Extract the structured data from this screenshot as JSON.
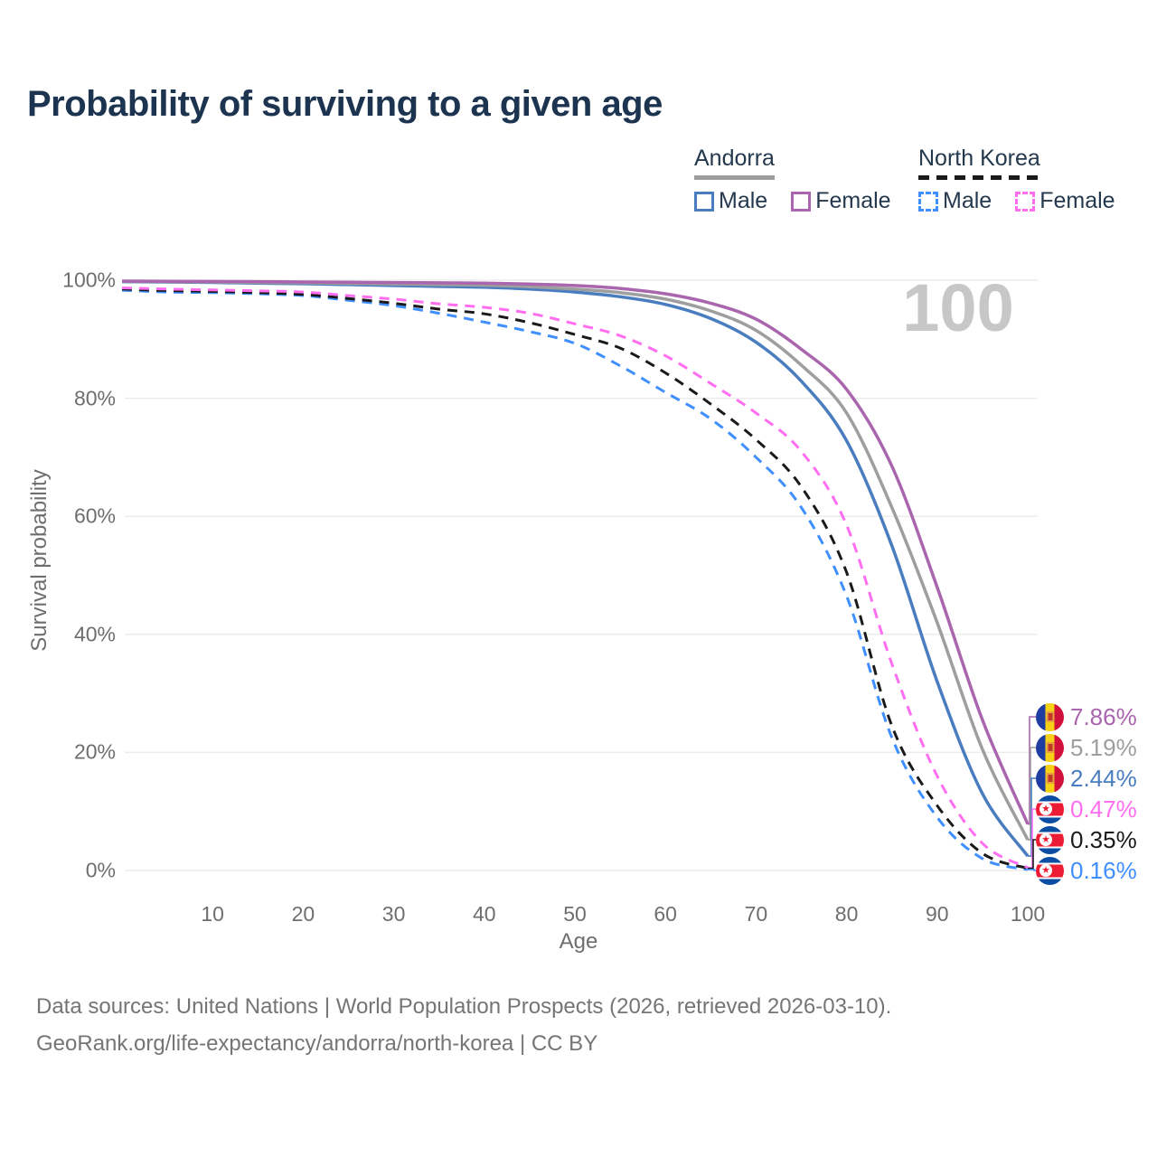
{
  "page": {
    "footer": {
      "line1": "Data sources: United Nations | World Population Prospects (2026, retrieved 2026-03-10).",
      "line2": "GeoRank.org/life-expectancy/andorra/north-korea | CC BY"
    }
  },
  "chart_data": {
    "type": "line",
    "title": "Probability of surviving to a given age",
    "xlabel": "Age",
    "ylabel": "Survival probability",
    "xlim": [
      0,
      100
    ],
    "ylim": [
      0,
      100
    ],
    "grid": "horizontal",
    "legend_position": "top-right",
    "watermark": "100",
    "x_ticks": [
      10,
      20,
      30,
      40,
      50,
      60,
      70,
      80,
      90,
      100
    ],
    "y_ticks": [
      {
        "value": 0,
        "label": "0%"
      },
      {
        "value": 20,
        "label": "20%"
      },
      {
        "value": 40,
        "label": "40%"
      },
      {
        "value": 60,
        "label": "60%"
      },
      {
        "value": 80,
        "label": "80%"
      },
      {
        "value": 100,
        "label": "100%"
      }
    ],
    "ages": [
      0,
      5,
      10,
      15,
      20,
      25,
      30,
      35,
      40,
      45,
      50,
      55,
      60,
      65,
      70,
      75,
      80,
      85,
      90,
      95,
      100
    ],
    "series": [
      {
        "id": "andorra-female",
        "name": "Andorra — Female",
        "country": "Andorra",
        "sex": "Female",
        "color": "#a965ad",
        "dashed": false,
        "flag": "ad",
        "end_label": "7.86%",
        "values": [
          99.85,
          99.8,
          99.78,
          99.75,
          99.7,
          99.65,
          99.6,
          99.55,
          99.5,
          99.35,
          99.1,
          98.6,
          97.7,
          96.1,
          93.4,
          88.3,
          81.5,
          68.5,
          48.0,
          25.5,
          7.86
        ]
      },
      {
        "id": "andorra-both",
        "name": "Andorra — Both sexes",
        "country": "Andorra",
        "sex": "Both sexes",
        "color": "#9e9e9e",
        "dashed": false,
        "flag": "ad",
        "end_label": "5.19%",
        "values": [
          99.8,
          99.75,
          99.7,
          99.62,
          99.55,
          99.45,
          99.35,
          99.25,
          99.15,
          98.9,
          98.5,
          97.9,
          96.8,
          94.8,
          91.5,
          85.6,
          77.5,
          61.5,
          42.0,
          20.5,
          5.19
        ]
      },
      {
        "id": "andorra-male",
        "name": "Andorra — Male",
        "country": "Andorra",
        "sex": "Male",
        "color": "#4a7dbf",
        "dashed": false,
        "flag": "ad",
        "end_label": "2.44%",
        "values": [
          99.75,
          99.7,
          99.62,
          99.5,
          99.4,
          99.25,
          99.1,
          98.95,
          98.8,
          98.5,
          98.0,
          97.2,
          95.9,
          93.5,
          89.5,
          82.9,
          72.8,
          55.0,
          32.0,
          13.0,
          2.44
        ]
      },
      {
        "id": "north-korea-female",
        "name": "North Korea — Female",
        "country": "North Korea",
        "sex": "Female",
        "color": "#ff6ef0",
        "dashed": true,
        "flag": "kp",
        "end_label": "0.47%",
        "values": [
          98.7,
          98.5,
          98.35,
          98.2,
          98.0,
          97.4,
          96.8,
          96.0,
          95.4,
          94.4,
          92.6,
          90.6,
          87.2,
          82.5,
          77.5,
          71.0,
          58.5,
          35.0,
          16.0,
          4.6,
          0.47
        ]
      },
      {
        "id": "north-korea-both",
        "name": "North Korea — Both sexes",
        "country": "North Korea",
        "sex": "Both sexes",
        "color": "#1a1a1a",
        "dashed": true,
        "flag": "kp",
        "end_label": "0.35%",
        "values": [
          98.5,
          98.25,
          98.1,
          97.9,
          97.6,
          96.9,
          96.1,
          95.1,
          94.3,
          92.8,
          90.8,
          88.5,
          84.3,
          79.0,
          73.0,
          65.0,
          50.5,
          24.5,
          11.0,
          2.9,
          0.35
        ]
      },
      {
        "id": "north-korea-male",
        "name": "North Korea — Male",
        "country": "North Korea",
        "sex": "Male",
        "color": "#3f8fff",
        "dashed": true,
        "flag": "kp",
        "end_label": "0.16%",
        "values": [
          98.3,
          98.0,
          97.9,
          97.7,
          97.4,
          96.6,
          95.7,
          94.4,
          92.9,
          91.3,
          89.3,
          85.5,
          81.0,
          76.5,
          70.0,
          61.5,
          46.5,
          22.5,
          9.0,
          2.0,
          0.16
        ]
      }
    ],
    "legend": {
      "groups": [
        {
          "country": "Andorra",
          "underline_color": "#9e9e9e",
          "underline_style": "solid",
          "items": [
            {
              "label": "Male",
              "color": "#4a7dbf"
            },
            {
              "label": "Female",
              "color": "#a965ad"
            }
          ]
        },
        {
          "country": "North Korea",
          "underline_color": "#1a1a1a",
          "underline_style": "dashed",
          "items": [
            {
              "label": "Male",
              "color": "#3f8fff"
            },
            {
              "label": "Female",
              "color": "#ff6ef0"
            }
          ]
        }
      ]
    },
    "colors": {
      "grid": "#ececec",
      "tick_text": "#6e6e6e",
      "title_text": "#1c3450",
      "watermark": "#c7c7c7"
    }
  }
}
